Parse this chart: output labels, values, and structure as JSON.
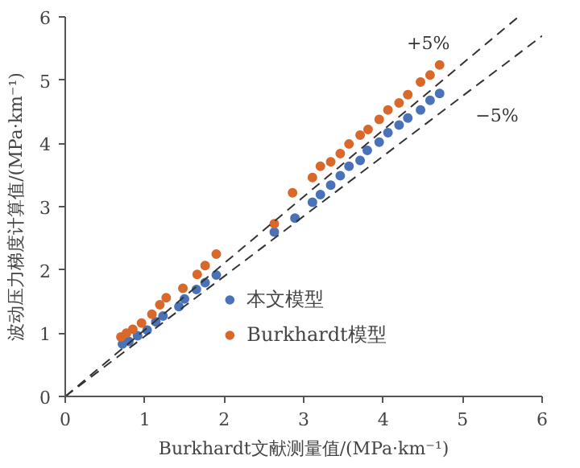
{
  "chart_data": {
    "type": "scatter",
    "xlabel": "Burkhardt文献测量值/(MPa·km⁻¹)",
    "ylabel": "波动压力梯度计算值/(MPa·km⁻¹)",
    "xlim": [
      0,
      6
    ],
    "ylim": [
      0,
      6
    ],
    "xticks": [
      0,
      1,
      2,
      3,
      4,
      5,
      6
    ],
    "yticks": [
      0,
      1,
      2,
      3,
      4,
      5,
      6
    ],
    "grid": false,
    "legend": "bottom",
    "marker": "circle",
    "series": [
      {
        "name": "本文模型",
        "color": "#4a72b8",
        "x": [
          0.72,
          0.8,
          0.91,
          1.03,
          1.14,
          1.23,
          1.43,
          1.5,
          1.65,
          1.76,
          1.9,
          2.63,
          2.89,
          3.11,
          3.21,
          3.34,
          3.46,
          3.57,
          3.71,
          3.8,
          3.95,
          4.06,
          4.2,
          4.31,
          4.47,
          4.59,
          4.71
        ],
        "values": [
          0.83,
          0.87,
          0.96,
          1.05,
          1.18,
          1.27,
          1.42,
          1.54,
          1.69,
          1.8,
          1.92,
          2.6,
          2.82,
          3.07,
          3.19,
          3.34,
          3.49,
          3.64,
          3.73,
          3.89,
          4.02,
          4.17,
          4.29,
          4.4,
          4.53,
          4.68,
          4.79
        ]
      },
      {
        "name": "Burkhardt模型",
        "color": "#d9682b",
        "x": [
          0.7,
          0.77,
          0.85,
          0.96,
          1.09,
          1.19,
          1.27,
          1.48,
          1.66,
          1.76,
          1.9,
          2.63,
          2.86,
          3.11,
          3.21,
          3.34,
          3.46,
          3.57,
          3.71,
          3.81,
          3.95,
          4.06,
          4.2,
          4.31,
          4.47,
          4.59,
          4.71
        ],
        "values": [
          0.94,
          1.0,
          1.06,
          1.16,
          1.3,
          1.45,
          1.56,
          1.71,
          1.93,
          2.07,
          2.25,
          2.73,
          3.22,
          3.46,
          3.64,
          3.71,
          3.84,
          3.99,
          4.13,
          4.22,
          4.38,
          4.53,
          4.64,
          4.77,
          4.97,
          5.08,
          5.24
        ]
      },
      {
        "type": "line",
        "line_style": "dashed",
        "marker": "none",
        "color": "#333333",
        "x": [
          0,
          5.7
        ],
        "values": [
          0,
          6
        ]
      },
      {
        "type": "line",
        "line_style": "dashed",
        "marker": "none",
        "color": "#333333",
        "x": [
          0,
          6
        ],
        "values": [
          0,
          5.7
        ]
      }
    ],
    "annotations": [
      {
        "text": "+5%",
        "x": 5.0,
        "y": 5.26
      },
      {
        "text": "−5%",
        "x": 5.0,
        "y": 4.75
      }
    ]
  }
}
